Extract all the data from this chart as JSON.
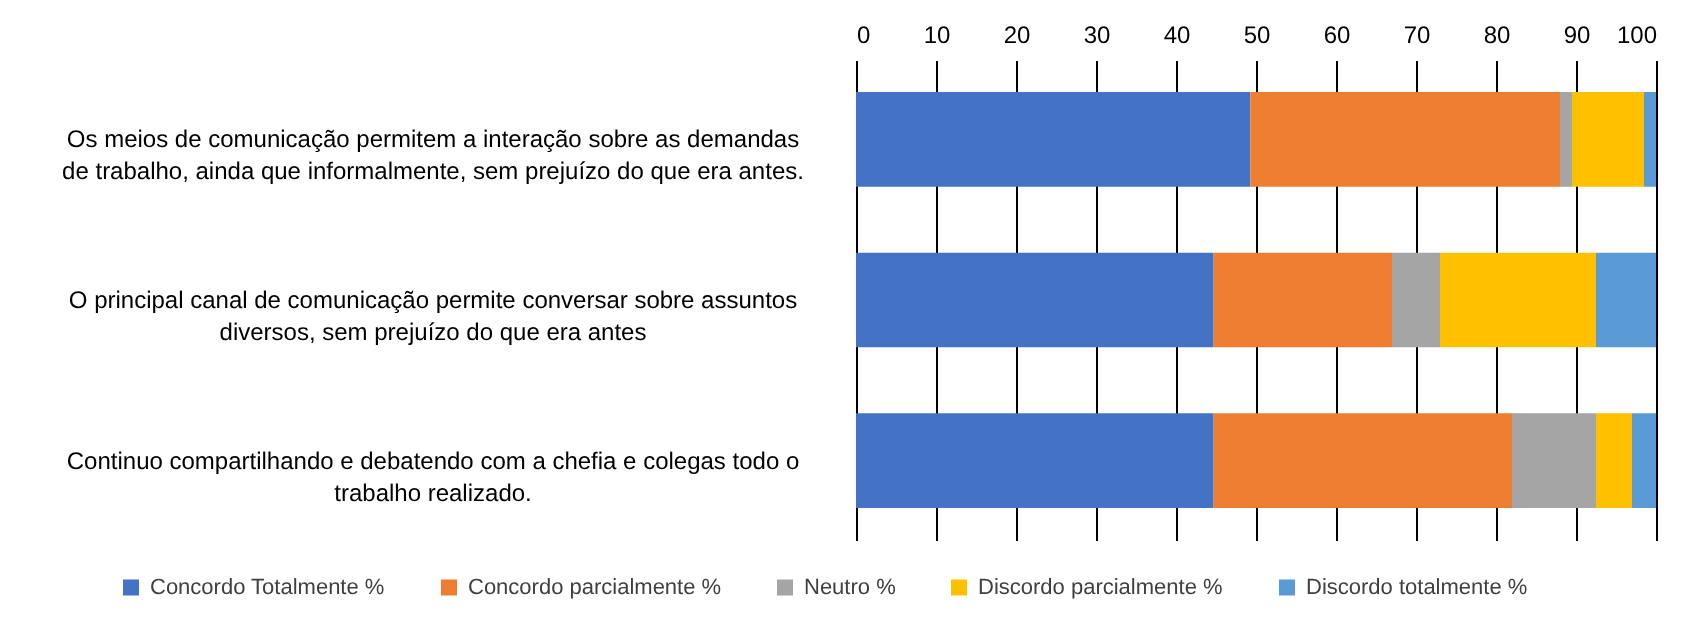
{
  "chart_data": {
    "type": "bar",
    "orientation": "horizontal",
    "stacked": true,
    "categories": [
      "Os meios de comunicação permitem a interação sobre as demandas de trabalho, ainda que informalmente, sem prejuízo do que era antes.",
      "O principal canal de comunicação permite conversar sobre assuntos diversos, sem prejuízo do que era antes",
      "Continuo compartilhando e debatendo com a chefia e colegas todo o trabalho realizado."
    ],
    "series": [
      {
        "name": "Concordo Totalmente %",
        "color": "#4472c4",
        "values": [
          49.3,
          44.7,
          44.7
        ]
      },
      {
        "name": "Concordo parcialmente %",
        "color": "#ed7d31",
        "values": [
          38.7,
          22.3,
          37.3
        ]
      },
      {
        "name": "Neutro %",
        "color": "#a5a5a5",
        "values": [
          1.5,
          6.0,
          10.5
        ]
      },
      {
        "name": "Discordo parcialmente %",
        "color": "#ffc000",
        "values": [
          9.0,
          19.5,
          4.5
        ]
      },
      {
        "name": "Discordo totalmente %",
        "color": "#5b9bd5",
        "values": [
          1.5,
          7.5,
          3.0
        ]
      }
    ],
    "xlim": [
      0,
      100
    ],
    "xticks": [
      0,
      10,
      20,
      30,
      40,
      50,
      60,
      70,
      80,
      90,
      100
    ],
    "grid": "x",
    "legend": "bottom"
  }
}
